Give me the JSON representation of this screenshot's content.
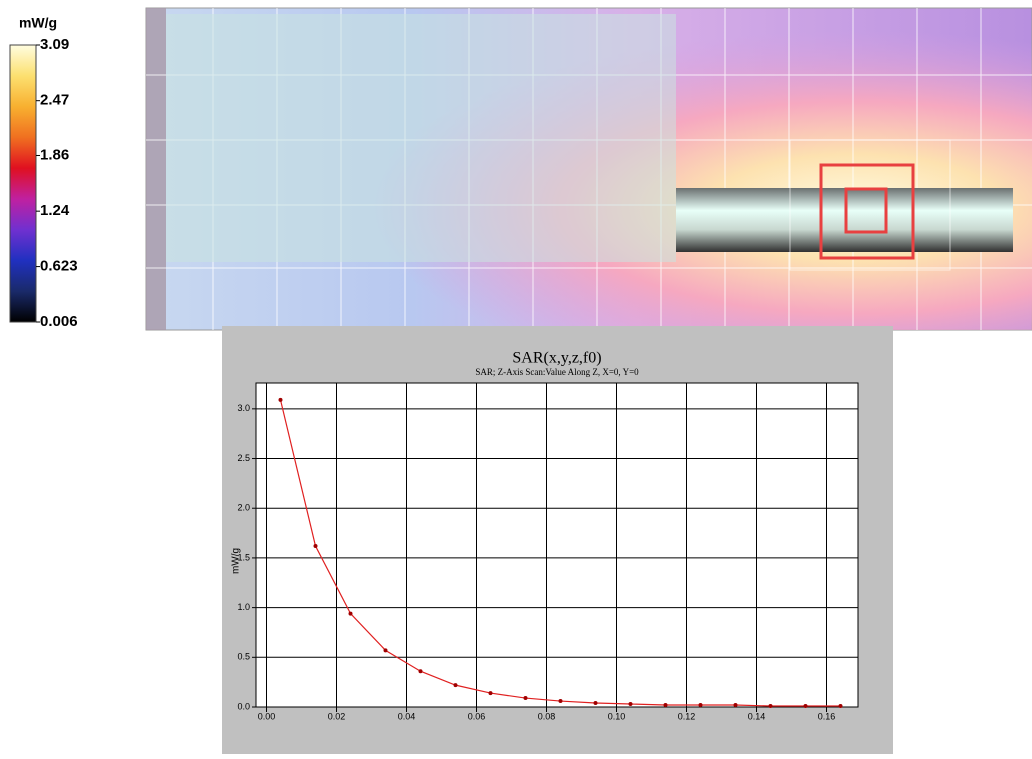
{
  "chart_data": [
    {
      "type": "colorbar",
      "label": "mW/g",
      "zlim": [
        0.006,
        3.09
      ],
      "zticks": [
        3.09,
        2.47,
        1.86,
        1.24,
        0.623,
        0.006
      ],
      "colormap": [
        "#000000",
        "#1a2a6a",
        "#2030c0",
        "#7030d0",
        "#c020a0",
        "#e01020",
        "#f07020",
        "#f8b030",
        "#fce070",
        "#fffde0"
      ]
    },
    {
      "type": "line",
      "title": "SAR(x,y,z,f0)",
      "subtitle": "SAR; Z-Axis Scan:Value Along Z, X=0, Y=0",
      "y_label": "mW/g",
      "x": [
        0.004,
        0.014,
        0.024,
        0.034,
        0.044,
        0.054,
        0.064,
        0.074,
        0.084,
        0.094,
        0.104,
        0.114,
        0.124,
        0.134,
        0.144,
        0.154,
        0.164
      ],
      "series": [
        {
          "name": "SAR",
          "color": "#e02020",
          "values": [
            3.09,
            1.62,
            0.94,
            0.57,
            0.36,
            0.22,
            0.14,
            0.09,
            0.06,
            0.04,
            0.03,
            0.02,
            0.02,
            0.02,
            0.01,
            0.01,
            0.01
          ]
        }
      ],
      "xlim": [
        -0.003,
        0.169
      ],
      "ylim": [
        0,
        3.26
      ],
      "xticks": [
        {
          "value": 0,
          "label": "0.00"
        },
        {
          "value": 0.02,
          "label": "0.02"
        },
        {
          "value": 0.04,
          "label": "0.04"
        },
        {
          "value": 0.06,
          "label": "0.06"
        },
        {
          "value": 0.08,
          "label": "0.08"
        },
        {
          "value": 0.1,
          "label": "0.10"
        },
        {
          "value": 0.12,
          "label": "0.12"
        },
        {
          "value": 0.14,
          "label": "0.14"
        },
        {
          "value": 0.16,
          "label": "0.16"
        }
      ],
      "yticks": [
        {
          "value": 0,
          "label": "0.0"
        },
        {
          "value": 0.5,
          "label": "0.5"
        },
        {
          "value": 1,
          "label": "1.0"
        },
        {
          "value": 1.5,
          "label": "1.5"
        },
        {
          "value": 2,
          "label": "2.0"
        },
        {
          "value": 2.5,
          "label": "2.5"
        },
        {
          "value": 3,
          "label": "3.0"
        }
      ],
      "grid": true
    }
  ]
}
